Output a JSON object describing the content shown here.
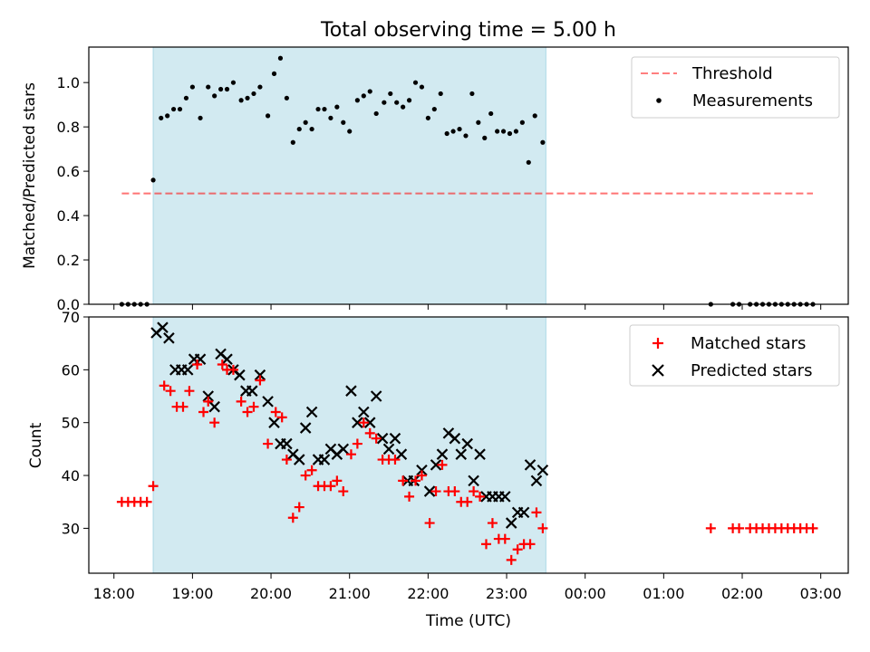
{
  "figure": {
    "title": "Total observing time = 5.00 h",
    "xlabel": "Time (UTC)"
  },
  "colors": {
    "shade": "#add8e6",
    "threshold": "#ff0000",
    "measurements": "#000000",
    "matched": "#ff0000",
    "predicted": "#000000"
  },
  "chart_data": [
    {
      "type": "scatter",
      "ylabel": "Matched/Predicted stars",
      "x_unit": "hours after 18:00 UTC",
      "xlim": [
        -0.32,
        9.35
      ],
      "ylim": [
        0,
        1.16
      ],
      "yticks": [
        0.0,
        0.2,
        0.4,
        0.6,
        0.8,
        1.0
      ],
      "ytick_labels": [
        "0.0",
        "0.2",
        "0.4",
        "0.6",
        "0.8",
        "1.0"
      ],
      "grid": false,
      "legend_position": "top-right",
      "shaded_interval": [
        0.5,
        5.5
      ],
      "threshold": {
        "name": "Threshold",
        "y": 0.5,
        "x_range": [
          0.1,
          8.9
        ],
        "style": "dashed"
      },
      "series": [
        {
          "name": "Measurements",
          "points": [
            [
              0.1,
              0.0
            ],
            [
              0.18,
              0.0
            ],
            [
              0.26,
              0.0
            ],
            [
              0.34,
              0.0
            ],
            [
              0.42,
              0.0
            ],
            [
              0.5,
              0.56
            ],
            [
              0.6,
              0.84
            ],
            [
              0.68,
              0.85
            ],
            [
              0.76,
              0.88
            ],
            [
              0.84,
              0.88
            ],
            [
              0.92,
              0.93
            ],
            [
              1.0,
              0.98
            ],
            [
              1.1,
              0.84
            ],
            [
              1.2,
              0.98
            ],
            [
              1.28,
              0.94
            ],
            [
              1.36,
              0.97
            ],
            [
              1.44,
              0.97
            ],
            [
              1.52,
              1.0
            ],
            [
              1.62,
              0.92
            ],
            [
              1.7,
              0.93
            ],
            [
              1.78,
              0.95
            ],
            [
              1.86,
              0.98
            ],
            [
              1.96,
              0.85
            ],
            [
              2.04,
              1.04
            ],
            [
              2.12,
              1.11
            ],
            [
              2.2,
              0.93
            ],
            [
              2.28,
              0.73
            ],
            [
              2.36,
              0.79
            ],
            [
              2.44,
              0.82
            ],
            [
              2.52,
              0.79
            ],
            [
              2.6,
              0.88
            ],
            [
              2.68,
              0.88
            ],
            [
              2.76,
              0.84
            ],
            [
              2.84,
              0.89
            ],
            [
              2.92,
              0.82
            ],
            [
              3.0,
              0.78
            ],
            [
              3.1,
              0.92
            ],
            [
              3.18,
              0.94
            ],
            [
              3.26,
              0.96
            ],
            [
              3.34,
              0.86
            ],
            [
              3.44,
              0.91
            ],
            [
              3.52,
              0.95
            ],
            [
              3.6,
              0.91
            ],
            [
              3.68,
              0.89
            ],
            [
              3.76,
              0.92
            ],
            [
              3.84,
              1.0
            ],
            [
              3.92,
              0.98
            ],
            [
              4.0,
              0.84
            ],
            [
              4.08,
              0.88
            ],
            [
              4.16,
              0.95
            ],
            [
              4.24,
              0.77
            ],
            [
              4.32,
              0.78
            ],
            [
              4.4,
              0.79
            ],
            [
              4.48,
              0.76
            ],
            [
              4.56,
              0.95
            ],
            [
              4.64,
              0.82
            ],
            [
              4.72,
              0.75
            ],
            [
              4.8,
              0.86
            ],
            [
              4.88,
              0.78
            ],
            [
              4.96,
              0.78
            ],
            [
              5.04,
              0.77
            ],
            [
              5.12,
              0.78
            ],
            [
              5.2,
              0.82
            ],
            [
              5.28,
              0.64
            ],
            [
              5.36,
              0.85
            ],
            [
              5.46,
              0.73
            ],
            [
              7.6,
              0.0
            ],
            [
              7.88,
              0.0
            ],
            [
              7.96,
              0.0
            ],
            [
              8.1,
              0.0
            ],
            [
              8.18,
              0.0
            ],
            [
              8.26,
              0.0
            ],
            [
              8.34,
              0.0
            ],
            [
              8.42,
              0.0
            ],
            [
              8.5,
              0.0
            ],
            [
              8.58,
              0.0
            ],
            [
              8.66,
              0.0
            ],
            [
              8.74,
              0.0
            ],
            [
              8.82,
              0.0
            ],
            [
              8.9,
              0.0
            ]
          ]
        }
      ]
    },
    {
      "type": "scatter",
      "ylabel": "Count",
      "x_unit": "hours after 18:00 UTC",
      "xlim": [
        -0.32,
        9.35
      ],
      "ylim": [
        21.5,
        70
      ],
      "yticks": [
        30,
        40,
        50,
        60,
        70
      ],
      "ytick_labels": [
        "30",
        "40",
        "50",
        "60",
        "70"
      ],
      "xticks": [
        0,
        1,
        2,
        3,
        4,
        5,
        6,
        7,
        8,
        9
      ],
      "xtick_labels": [
        "18:00",
        "19:00",
        "20:00",
        "21:00",
        "22:00",
        "23:00",
        "00:00",
        "01:00",
        "02:00",
        "03:00"
      ],
      "grid": false,
      "legend_position": "top-right",
      "shaded_interval": [
        0.5,
        5.5
      ],
      "series": [
        {
          "name": "Matched stars",
          "marker": "plus",
          "points": [
            [
              0.1,
              35
            ],
            [
              0.18,
              35
            ],
            [
              0.26,
              35
            ],
            [
              0.34,
              35
            ],
            [
              0.42,
              35
            ],
            [
              0.5,
              38
            ],
            [
              0.64,
              57
            ],
            [
              0.72,
              56
            ],
            [
              0.8,
              53
            ],
            [
              0.88,
              53
            ],
            [
              0.96,
              56
            ],
            [
              1.06,
              61
            ],
            [
              1.14,
              52
            ],
            [
              1.2,
              54
            ],
            [
              1.28,
              50
            ],
            [
              1.38,
              61
            ],
            [
              1.44,
              60
            ],
            [
              1.52,
              60
            ],
            [
              1.62,
              54
            ],
            [
              1.7,
              52
            ],
            [
              1.78,
              53
            ],
            [
              1.86,
              58
            ],
            [
              1.96,
              46
            ],
            [
              2.06,
              52
            ],
            [
              2.14,
              51
            ],
            [
              2.2,
              43
            ],
            [
              2.28,
              32
            ],
            [
              2.36,
              34
            ],
            [
              2.44,
              40
            ],
            [
              2.52,
              41
            ],
            [
              2.6,
              38
            ],
            [
              2.68,
              38
            ],
            [
              2.76,
              38
            ],
            [
              2.84,
              39
            ],
            [
              2.92,
              37
            ],
            [
              3.02,
              44
            ],
            [
              3.1,
              46
            ],
            [
              3.18,
              50
            ],
            [
              3.26,
              48
            ],
            [
              3.34,
              47
            ],
            [
              3.42,
              43
            ],
            [
              3.5,
              43
            ],
            [
              3.58,
              43
            ],
            [
              3.68,
              39
            ],
            [
              3.76,
              36
            ],
            [
              3.84,
              39
            ],
            [
              3.92,
              40
            ],
            [
              4.02,
              31
            ],
            [
              4.1,
              37
            ],
            [
              4.18,
              42
            ],
            [
              4.26,
              37
            ],
            [
              4.34,
              37
            ],
            [
              4.42,
              35
            ],
            [
              4.5,
              35
            ],
            [
              4.58,
              37
            ],
            [
              4.66,
              36
            ],
            [
              4.74,
              27
            ],
            [
              4.82,
              31
            ],
            [
              4.9,
              28
            ],
            [
              4.98,
              28
            ],
            [
              5.06,
              24
            ],
            [
              5.14,
              26
            ],
            [
              5.22,
              27
            ],
            [
              5.3,
              27
            ],
            [
              5.38,
              33
            ],
            [
              5.46,
              30
            ],
            [
              7.6,
              30
            ],
            [
              7.88,
              30
            ],
            [
              7.96,
              30
            ],
            [
              8.1,
              30
            ],
            [
              8.18,
              30
            ],
            [
              8.26,
              30
            ],
            [
              8.34,
              30
            ],
            [
              8.42,
              30
            ],
            [
              8.5,
              30
            ],
            [
              8.58,
              30
            ],
            [
              8.66,
              30
            ],
            [
              8.74,
              30
            ],
            [
              8.82,
              30
            ],
            [
              8.9,
              30
            ]
          ]
        },
        {
          "name": "Predicted stars",
          "marker": "x",
          "points": [
            [
              0.54,
              67
            ],
            [
              0.62,
              68
            ],
            [
              0.7,
              66
            ],
            [
              0.78,
              60
            ],
            [
              0.86,
              60
            ],
            [
              0.94,
              60
            ],
            [
              1.02,
              62
            ],
            [
              1.1,
              62
            ],
            [
              1.2,
              55
            ],
            [
              1.28,
              53
            ],
            [
              1.36,
              63
            ],
            [
              1.44,
              62
            ],
            [
              1.52,
              60
            ],
            [
              1.6,
              59
            ],
            [
              1.68,
              56
            ],
            [
              1.76,
              56
            ],
            [
              1.86,
              59
            ],
            [
              1.96,
              54
            ],
            [
              2.04,
              50
            ],
            [
              2.12,
              46
            ],
            [
              2.2,
              46
            ],
            [
              2.28,
              44
            ],
            [
              2.36,
              43
            ],
            [
              2.44,
              49
            ],
            [
              2.52,
              52
            ],
            [
              2.6,
              43
            ],
            [
              2.68,
              43
            ],
            [
              2.76,
              45
            ],
            [
              2.84,
              44
            ],
            [
              2.92,
              45
            ],
            [
              3.02,
              56
            ],
            [
              3.1,
              50
            ],
            [
              3.18,
              52
            ],
            [
              3.26,
              50
            ],
            [
              3.34,
              55
            ],
            [
              3.42,
              47
            ],
            [
              3.5,
              45
            ],
            [
              3.58,
              47
            ],
            [
              3.66,
              44
            ],
            [
              3.74,
              39
            ],
            [
              3.82,
              39
            ],
            [
              3.92,
              41
            ],
            [
              4.02,
              37
            ],
            [
              4.1,
              42
            ],
            [
              4.18,
              44
            ],
            [
              4.26,
              48
            ],
            [
              4.34,
              47
            ],
            [
              4.42,
              44
            ],
            [
              4.5,
              46
            ],
            [
              4.58,
              39
            ],
            [
              4.66,
              44
            ],
            [
              4.74,
              36
            ],
            [
              4.82,
              36
            ],
            [
              4.9,
              36
            ],
            [
              4.98,
              36
            ],
            [
              5.06,
              31
            ],
            [
              5.14,
              33
            ],
            [
              5.22,
              33
            ],
            [
              5.3,
              42
            ],
            [
              5.38,
              39
            ],
            [
              5.46,
              41
            ]
          ]
        }
      ]
    }
  ]
}
